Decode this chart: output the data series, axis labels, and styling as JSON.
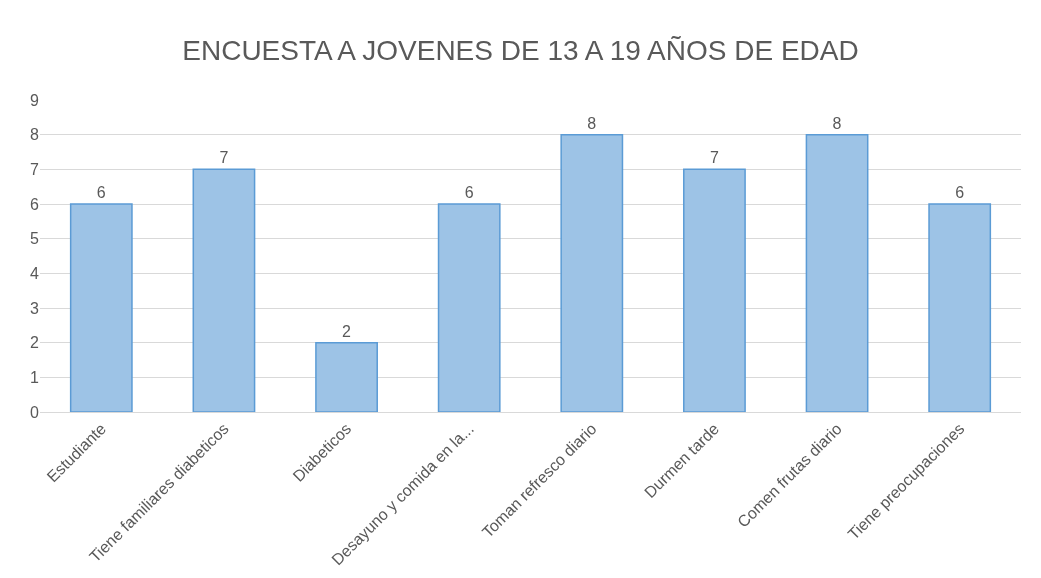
{
  "chart_data": {
    "type": "bar",
    "title": "ENCUESTA A JOVENES DE 13 A 19 AÑOS DE EDAD",
    "categories": [
      "Estudiante",
      "Tiene familiares diabeticos",
      "Diabeticos",
      "Desayuno y comida en la...",
      "Toman refresco diario",
      "Durmen tarde",
      "Comen frutas diario",
      "Tiene preocupaciones"
    ],
    "values": [
      6,
      7,
      2,
      6,
      8,
      7,
      8,
      6
    ],
    "color": "#9dc3e6",
    "ylim": [
      0,
      9
    ],
    "yticks": [
      0,
      1,
      2,
      3,
      4,
      5,
      6,
      7,
      8,
      9
    ],
    "grid": "y",
    "data_labels": true
  }
}
